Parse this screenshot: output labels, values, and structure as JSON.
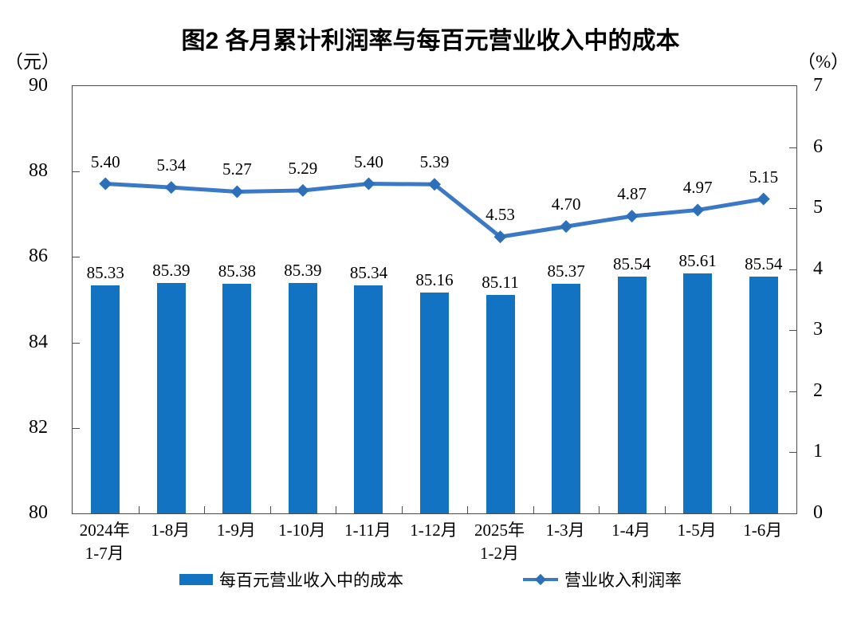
{
  "title": "图2 各月累计利润率与每百元营业收入中的成本",
  "left_axis": {
    "unit": "（元）",
    "tick_labels": [
      "90",
      "88",
      "86",
      "84",
      "82",
      "80"
    ],
    "min": 80,
    "max": 90
  },
  "right_axis": {
    "unit": "（%）",
    "tick_labels": [
      "7",
      "6",
      "5",
      "4",
      "3",
      "2",
      "1",
      "0"
    ],
    "min": 0,
    "max": 7
  },
  "legend": {
    "bar_label": "每百元营业收入中的成本",
    "line_label": "营业收入利润率"
  },
  "colors": {
    "bar": "#1173C2",
    "line": "#3B78C6",
    "marker": "#2E6FB9",
    "axis": "#4d4d4d"
  },
  "chart_data": {
    "type": "bar",
    "subtype": "bar-and-line-dual-axis",
    "title": "图2 各月累计利润率与每百元营业收入中的成本",
    "categories": [
      "2024年\n1-7月",
      "1-8月",
      "1-9月",
      "1-10月",
      "1-11月",
      "1-12月",
      "2025年\n1-2月",
      "1-3月",
      "1-4月",
      "1-5月",
      "1-6月"
    ],
    "series": [
      {
        "name": "每百元营业收入中的成本",
        "type": "bar",
        "axis": "left",
        "values": [
          85.33,
          85.39,
          85.38,
          85.39,
          85.34,
          85.16,
          85.11,
          85.37,
          85.54,
          85.61,
          85.54
        ],
        "labels": [
          "85.33",
          "85.39",
          "85.38",
          "85.39",
          "85.34",
          "85.16",
          "85.11",
          "85.37",
          "85.54",
          "85.61",
          "85.54"
        ]
      },
      {
        "name": "营业收入利润率",
        "type": "line",
        "axis": "right",
        "values": [
          5.4,
          5.34,
          5.27,
          5.29,
          5.4,
          5.39,
          4.53,
          4.7,
          4.87,
          4.97,
          5.15
        ],
        "labels": [
          "5.40",
          "5.34",
          "5.27",
          "5.29",
          "5.40",
          "5.39",
          "4.53",
          "4.70",
          "4.87",
          "4.97",
          "5.15"
        ]
      }
    ],
    "left_ylim": [
      80,
      90
    ],
    "right_ylim": [
      0,
      7
    ],
    "left_ylabel": "（元）",
    "right_ylabel": "（%）",
    "grid": false,
    "legend_position": "bottom"
  }
}
